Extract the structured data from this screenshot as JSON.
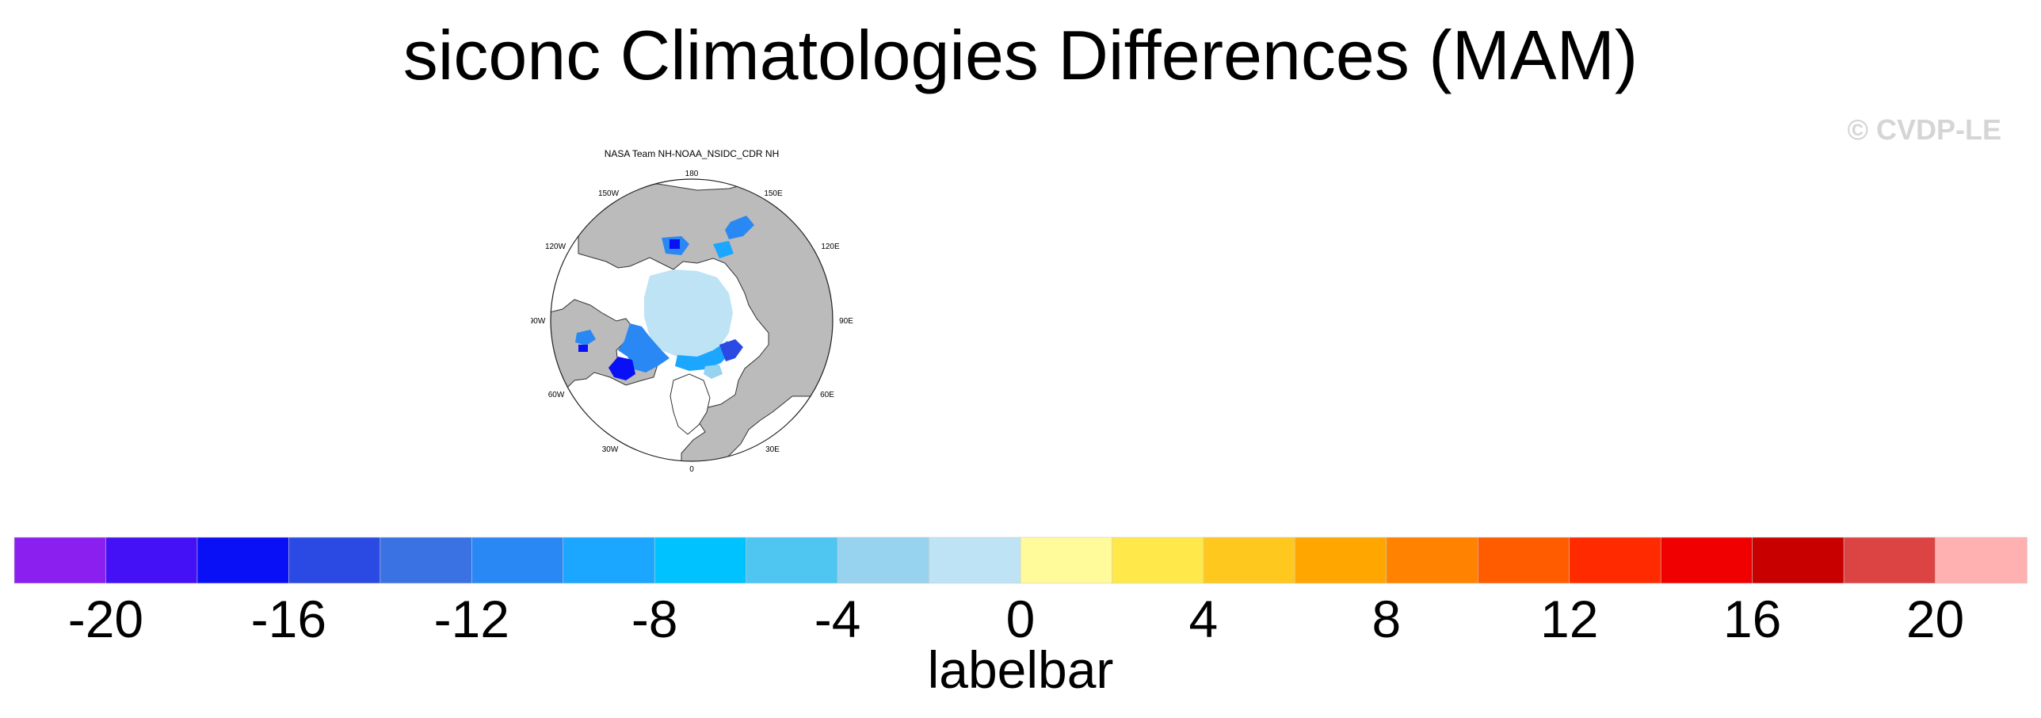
{
  "title": "siconc Climatologies Differences (MAM)",
  "watermark": "© CVDP-LE",
  "panel": {
    "title": "NASA Team NH-NOAA_NSIDC_CDR NH",
    "longitude_labels": [
      "180",
      "150E",
      "120E",
      "90E",
      "60E",
      "30E",
      "0",
      "30W",
      "60W",
      "90W",
      "120W",
      "150W"
    ]
  },
  "chart_data": {
    "type": "heatmap",
    "projection": "north polar stereographic",
    "title": "NASA Team NH-NOAA_NSIDC_CDR NH",
    "colorbar": {
      "label": "labelbar",
      "levels": [
        -22,
        -20,
        -18,
        -16,
        -14,
        -12,
        -10,
        -8,
        -6,
        -4,
        -2,
        0,
        2,
        4,
        6,
        8,
        10,
        12,
        14,
        16,
        18,
        20,
        22
      ],
      "tick_labels": [
        "-20",
        "-16",
        "-12",
        "-8",
        "-4",
        "0",
        "4",
        "8",
        "12",
        "16",
        "20"
      ],
      "colors": [
        "#8a1ff0",
        "#4410f5",
        "#0a10f5",
        "#2b4ae3",
        "#3a72e4",
        "#2a88f5",
        "#1ba6ff",
        "#00c2ff",
        "#4fc6f2",
        "#97d2ee",
        "#bde3f5",
        "#fffa9a",
        "#ffe84a",
        "#ffc81f",
        "#ffa600",
        "#ff8200",
        "#ff5c00",
        "#ff2a00",
        "#f00000",
        "#c80000",
        "#dc4444",
        "#ffb0b0"
      ]
    },
    "land_color": "#bbbbbb",
    "missing_color": "#ffffff"
  }
}
